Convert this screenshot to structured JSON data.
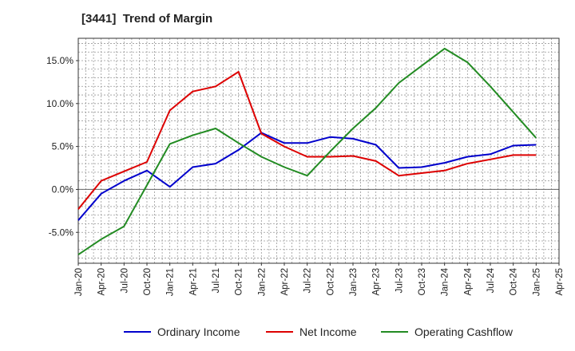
{
  "chart_data": {
    "type": "line",
    "title": "[3441]  Trend of Margin",
    "xlabel": "",
    "ylabel": "",
    "x": [
      "Jan-20",
      "Apr-20",
      "Jul-20",
      "Oct-20",
      "Jan-21",
      "Apr-21",
      "Jul-21",
      "Oct-21",
      "Jan-22",
      "Apr-22",
      "Jul-22",
      "Oct-22",
      "Jan-23",
      "Apr-23",
      "Jul-23",
      "Oct-23",
      "Jan-24",
      "Apr-24",
      "Jul-24",
      "Oct-24",
      "Jan-25"
    ],
    "x_ticks": [
      "Jan-20",
      "Apr-20",
      "Jul-20",
      "Oct-20",
      "Jan-21",
      "Apr-21",
      "Jul-21",
      "Oct-21",
      "Jan-22",
      "Apr-22",
      "Jul-22",
      "Oct-22",
      "Jan-23",
      "Apr-23",
      "Jul-23",
      "Oct-23",
      "Jan-24",
      "Apr-24",
      "Jul-24",
      "Oct-24",
      "Jan-25",
      "Apr-25"
    ],
    "y_ticks": [
      "-5.0%",
      "0.0%",
      "5.0%",
      "10.0%",
      "15.0%"
    ],
    "y_tick_values": [
      -5,
      0,
      5,
      10,
      15
    ],
    "ylim": [
      -8.6,
      17.6
    ],
    "grid": true,
    "legend_position": "bottom",
    "series": [
      {
        "name": "Ordinary Income",
        "color": "#0000cc",
        "values": [
          -3.6,
          -0.5,
          1.0,
          2.2,
          0.3,
          2.6,
          3.0,
          4.6,
          6.6,
          5.4,
          5.4,
          6.1,
          5.9,
          5.2,
          2.5,
          2.6,
          3.1,
          3.8,
          4.1,
          5.1,
          5.2
        ]
      },
      {
        "name": "Net Income",
        "color": "#dd0000",
        "values": [
          -2.3,
          1.0,
          2.1,
          3.2,
          9.2,
          11.4,
          12.0,
          13.7,
          6.5,
          5.0,
          3.8,
          3.8,
          3.9,
          3.3,
          1.6,
          1.9,
          2.2,
          3.0,
          3.5,
          4.0,
          4.0
        ]
      },
      {
        "name": "Operating Cashflow",
        "color": "#228b22",
        "values": [
          -7.6,
          -5.8,
          -4.3,
          0.5,
          5.3,
          6.3,
          7.1,
          5.4,
          3.8,
          2.6,
          1.6,
          4.4,
          7.1,
          9.5,
          12.4,
          14.4,
          16.4,
          14.8,
          12.0,
          9.0,
          6.0
        ]
      }
    ]
  }
}
